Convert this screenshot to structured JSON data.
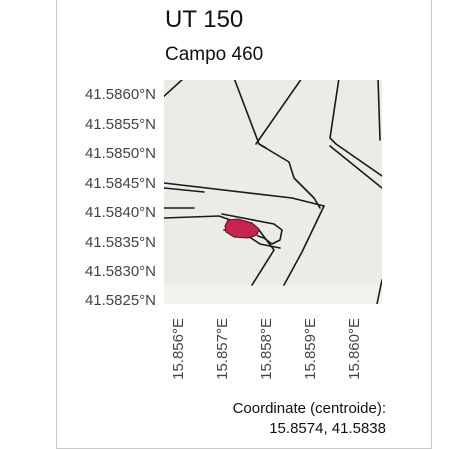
{
  "title": "UT 150",
  "subtitle": "Campo 460",
  "map": {
    "latitude_ticks": [
      "41.5860°N",
      "41.5855°N",
      "41.5850°N",
      "41.5845°N",
      "41.5840°N",
      "41.5835°N",
      "41.5830°N",
      "41.5825°N"
    ],
    "longitude_ticks": [
      "15.856°E",
      "15.857°E",
      "15.858°E",
      "15.859°E",
      "15.860°E"
    ],
    "highlight_color": "#c8234e",
    "land_color": "#e9ece7",
    "line_color": "#1a1a1a"
  },
  "centroide": {
    "label": "Coordinate (centroide):",
    "value": "15.8574, 41.5838"
  }
}
